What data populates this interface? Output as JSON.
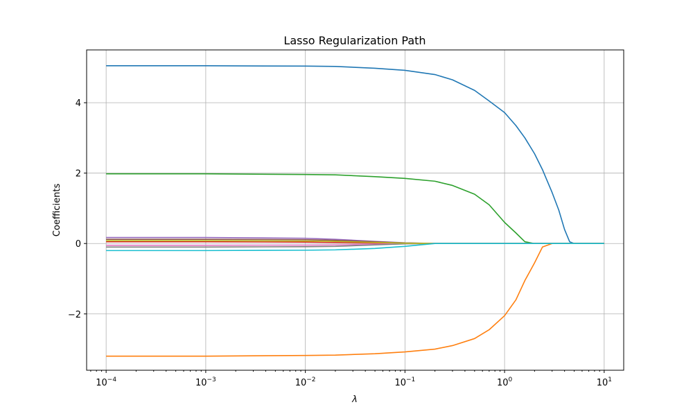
{
  "chart_data": {
    "type": "line",
    "title": "Lasso Regularization Path",
    "xlabel": "λ",
    "ylabel": "Coefficients",
    "xscale": "log",
    "xlim": [
      6.37e-05,
      15.7
    ],
    "ylim": [
      -3.6,
      5.5
    ],
    "grid": true,
    "x_ticks": [
      {
        "value": 0.0001,
        "base": "10",
        "exp": "−4"
      },
      {
        "value": 0.001,
        "base": "10",
        "exp": "−3"
      },
      {
        "value": 0.01,
        "base": "10",
        "exp": "−2"
      },
      {
        "value": 0.1,
        "base": "10",
        "exp": "−1"
      },
      {
        "value": 1,
        "base": "10",
        "exp": "0"
      },
      {
        "value": 10,
        "base": "10",
        "exp": "1"
      }
    ],
    "y_ticks": [
      {
        "value": -2,
        "label": "−2"
      },
      {
        "value": 0,
        "label": "0"
      },
      {
        "value": 2,
        "label": "2"
      },
      {
        "value": 4,
        "label": "4"
      }
    ],
    "x": [
      0.0001,
      0.001,
      0.01,
      0.02,
      0.05,
      0.1,
      0.2,
      0.3,
      0.5,
      0.7,
      1.0,
      1.3,
      1.6,
      2.0,
      2.4,
      3.0,
      3.5,
      4.0,
      4.5,
      5.0,
      6.0,
      8.0,
      10.0
    ],
    "series": [
      {
        "color": "#1f77b4",
        "values": [
          5.05,
          5.05,
          5.04,
          5.03,
          4.98,
          4.92,
          4.8,
          4.65,
          4.35,
          4.05,
          3.72,
          3.35,
          3.0,
          2.55,
          2.1,
          1.45,
          0.95,
          0.4,
          0.05,
          0.0,
          0.0,
          0.0,
          0.0
        ]
      },
      {
        "color": "#ff7f0e",
        "values": [
          -3.2,
          -3.2,
          -3.18,
          -3.17,
          -3.13,
          -3.08,
          -3.0,
          -2.9,
          -2.7,
          -2.45,
          -2.05,
          -1.6,
          -1.05,
          -0.55,
          -0.1,
          0.0,
          0.0,
          0.0,
          0.0,
          0.0,
          0.0,
          0.0,
          0.0
        ]
      },
      {
        "color": "#2ca02c",
        "values": [
          1.98,
          1.98,
          1.96,
          1.95,
          1.9,
          1.85,
          1.77,
          1.65,
          1.4,
          1.1,
          0.6,
          0.3,
          0.05,
          0.0,
          0.0,
          0.0,
          0.0,
          0.0,
          0.0,
          0.0,
          0.0,
          0.0,
          0.0
        ]
      },
      {
        "color": "#d62728",
        "values": [
          0.05,
          0.05,
          0.04,
          0.03,
          0.015,
          0.005,
          0.0,
          0.0,
          0.0,
          0.0,
          0.0,
          0.0,
          0.0,
          0.0,
          0.0,
          0.0,
          0.0,
          0.0,
          0.0,
          0.0,
          0.0,
          0.0,
          0.0
        ]
      },
      {
        "color": "#9467bd",
        "values": [
          0.17,
          0.17,
          0.15,
          0.12,
          0.06,
          0.02,
          0.0,
          0.0,
          0.0,
          0.0,
          0.0,
          0.0,
          0.0,
          0.0,
          0.0,
          0.0,
          0.0,
          0.0,
          0.0,
          0.0,
          0.0,
          0.0,
          0.0
        ]
      },
      {
        "color": "#8c564b",
        "values": [
          0.12,
          0.12,
          0.11,
          0.09,
          0.05,
          0.015,
          0.0,
          0.0,
          0.0,
          0.0,
          0.0,
          0.0,
          0.0,
          0.0,
          0.0,
          0.0,
          0.0,
          0.0,
          0.0,
          0.0,
          0.0,
          0.0,
          0.0
        ]
      },
      {
        "color": "#e377c2",
        "values": [
          -0.05,
          -0.05,
          -0.045,
          -0.04,
          -0.02,
          -0.005,
          0.0,
          0.0,
          0.0,
          0.0,
          0.0,
          0.0,
          0.0,
          0.0,
          0.0,
          0.0,
          0.0,
          0.0,
          0.0,
          0.0,
          0.0,
          0.0,
          0.0
        ]
      },
      {
        "color": "#7f7f7f",
        "values": [
          -0.1,
          -0.1,
          -0.09,
          -0.08,
          -0.04,
          -0.01,
          0.0,
          0.0,
          0.0,
          0.0,
          0.0,
          0.0,
          0.0,
          0.0,
          0.0,
          0.0,
          0.0,
          0.0,
          0.0,
          0.0,
          0.0,
          0.0,
          0.0
        ]
      },
      {
        "color": "#bcbd22",
        "values": [
          0.08,
          0.08,
          0.07,
          0.06,
          0.03,
          0.01,
          0.0,
          0.0,
          0.0,
          0.0,
          0.0,
          0.0,
          0.0,
          0.0,
          0.0,
          0.0,
          0.0,
          0.0,
          0.0,
          0.0,
          0.0,
          0.0,
          0.0
        ]
      },
      {
        "color": "#17becf",
        "values": [
          -0.2,
          -0.2,
          -0.19,
          -0.18,
          -0.14,
          -0.08,
          0.0,
          0.0,
          0.0,
          0.0,
          0.0,
          0.0,
          0.0,
          0.0,
          0.0,
          0.0,
          0.0,
          0.0,
          0.0,
          0.0,
          0.0,
          0.0,
          0.0
        ]
      }
    ]
  }
}
